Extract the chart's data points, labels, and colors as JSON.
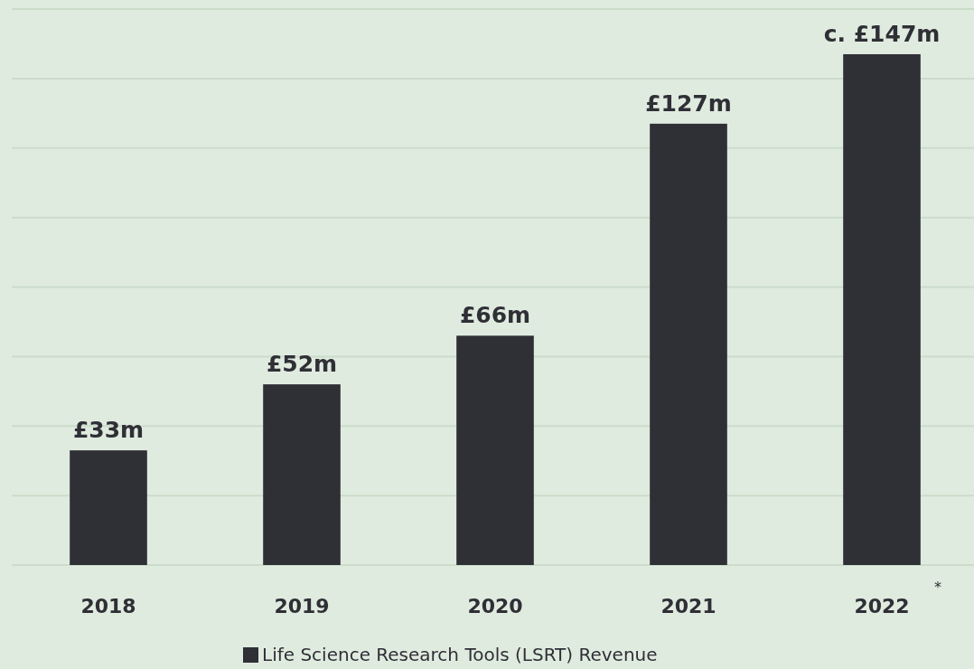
{
  "chart_data": {
    "type": "bar",
    "categories": [
      "2018",
      "2019",
      "2020",
      "2021",
      "2022"
    ],
    "series": [
      {
        "name": "Life Science Research Tools (LSRT) Revenue",
        "color": "#2f2f36",
        "values": [
          33,
          52,
          66,
          127,
          147
        ],
        "value_labels": [
          "£33m",
          "£52m",
          "£66m",
          "£127m",
          "c. £147m"
        ]
      }
    ],
    "ylim": [
      0,
      160
    ],
    "yticks": [
      {
        "value": 0,
        "label": null
      },
      {
        "value": 20,
        "label": null
      },
      {
        "value": 40,
        "label": null
      },
      {
        "value": 60,
        "label": null
      },
      {
        "value": 80,
        "label": null
      },
      {
        "value": 100,
        "label": null
      },
      {
        "value": 120,
        "label": null
      },
      {
        "value": 140,
        "label": null
      },
      {
        "value": 160,
        "label": null
      }
    ],
    "grid": "y",
    "tick_labels": "x",
    "legend": "bottom",
    "annotations": [
      "*"
    ]
  }
}
